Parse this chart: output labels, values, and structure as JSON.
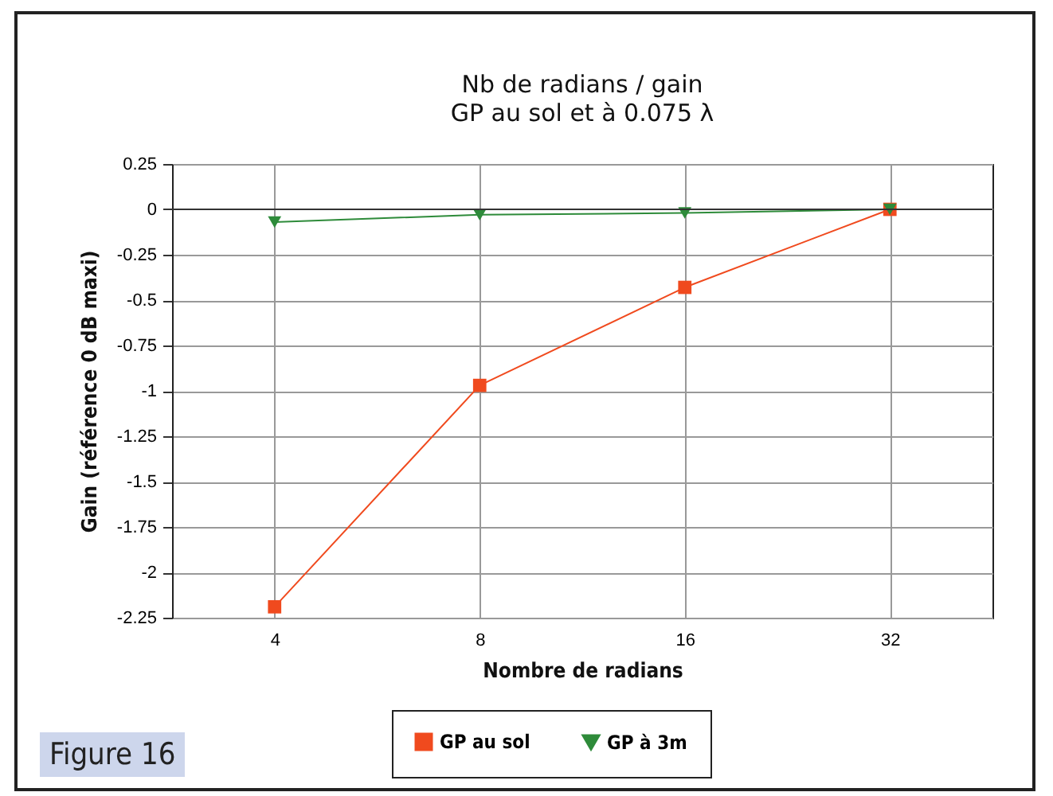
{
  "chart_data": {
    "type": "line",
    "title": "Nb de radians / gain",
    "subtitle": "GP au sol et à 0.075 λ",
    "xlabel": "Nombre de radians",
    "ylabel": "Gain (référence 0 dB maxi)",
    "categories": [
      "4",
      "8",
      "16",
      "32"
    ],
    "series": [
      {
        "name": "GP au sol",
        "color": "#f04a1e",
        "marker": "square",
        "values": [
          -2.19,
          -0.97,
          -0.43,
          0
        ]
      },
      {
        "name": "GP à 3m",
        "color": "#2e8b3a",
        "marker": "triangle-down",
        "values": [
          -0.07,
          -0.03,
          -0.02,
          0
        ]
      }
    ],
    "ylim": [
      -2.25,
      0.25
    ],
    "yticks": [
      0.25,
      0,
      -0.25,
      -0.5,
      -0.75,
      -1,
      -1.25,
      -1.5,
      -1.75,
      -2,
      -2.25
    ],
    "grid": true,
    "legend": "bottom",
    "annotations": [
      "Figure 16"
    ]
  }
}
